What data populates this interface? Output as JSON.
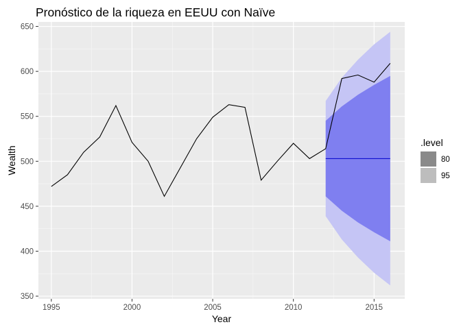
{
  "chart_data": {
    "type": "line",
    "title": "Pronóstico de la riqueza en EEUU con Naïve",
    "xlabel": "Year",
    "ylabel": "Wealth",
    "xlim": [
      1994.2,
      2016.9
    ],
    "ylim": [
      347,
      655
    ],
    "x_ticks": [
      1995,
      2000,
      2005,
      2010,
      2015
    ],
    "x_tick_labels": [
      "1995",
      "2000",
      "2005",
      "2010",
      "2015"
    ],
    "y_ticks": [
      350,
      400,
      450,
      500,
      550,
      600,
      650
    ],
    "y_tick_labels": [
      "350",
      "400",
      "450",
      "500",
      "550",
      "600",
      "650"
    ],
    "grid": true,
    "background": "#ebebeb",
    "series": [
      {
        "x": [
          1995,
          1996,
          1997,
          1998,
          1999,
          2000,
          2001,
          2002,
          2003,
          2004,
          2005,
          2006,
          2007,
          2008,
          2009,
          2010,
          2011,
          2012,
          2013,
          2014,
          2015,
          2016
        ],
        "y": [
          472,
          485,
          510,
          527,
          562,
          521,
          500,
          461,
          493,
          525,
          549,
          563,
          560,
          479,
          500,
          520,
          503,
          514,
          592,
          596,
          588,
          609
        ],
        "color": "#000000"
      }
    ],
    "forecast": {
      "x": [
        2012,
        2013,
        2014,
        2015,
        2016
      ],
      "mean": [
        503,
        503,
        503,
        503,
        503
      ],
      "mean_color": "#0000cc",
      "bands": [
        {
          "level": "95",
          "lower": [
            439,
            413,
            393,
            376,
            362
          ],
          "upper": [
            567,
            593,
            613,
            630,
            644
          ],
          "color": "#c5c5f5"
        },
        {
          "level": "80",
          "lower": [
            461,
            445,
            432,
            421,
            411
          ],
          "upper": [
            545,
            561,
            574,
            585,
            595
          ],
          "color": "#7f7ff0"
        }
      ]
    },
    "legend": {
      "title": ".level",
      "placement": "right",
      "items": [
        {
          "label": "80",
          "color": "#8a8a8a"
        },
        {
          "label": "95",
          "color": "#bdbdbd"
        }
      ]
    }
  }
}
